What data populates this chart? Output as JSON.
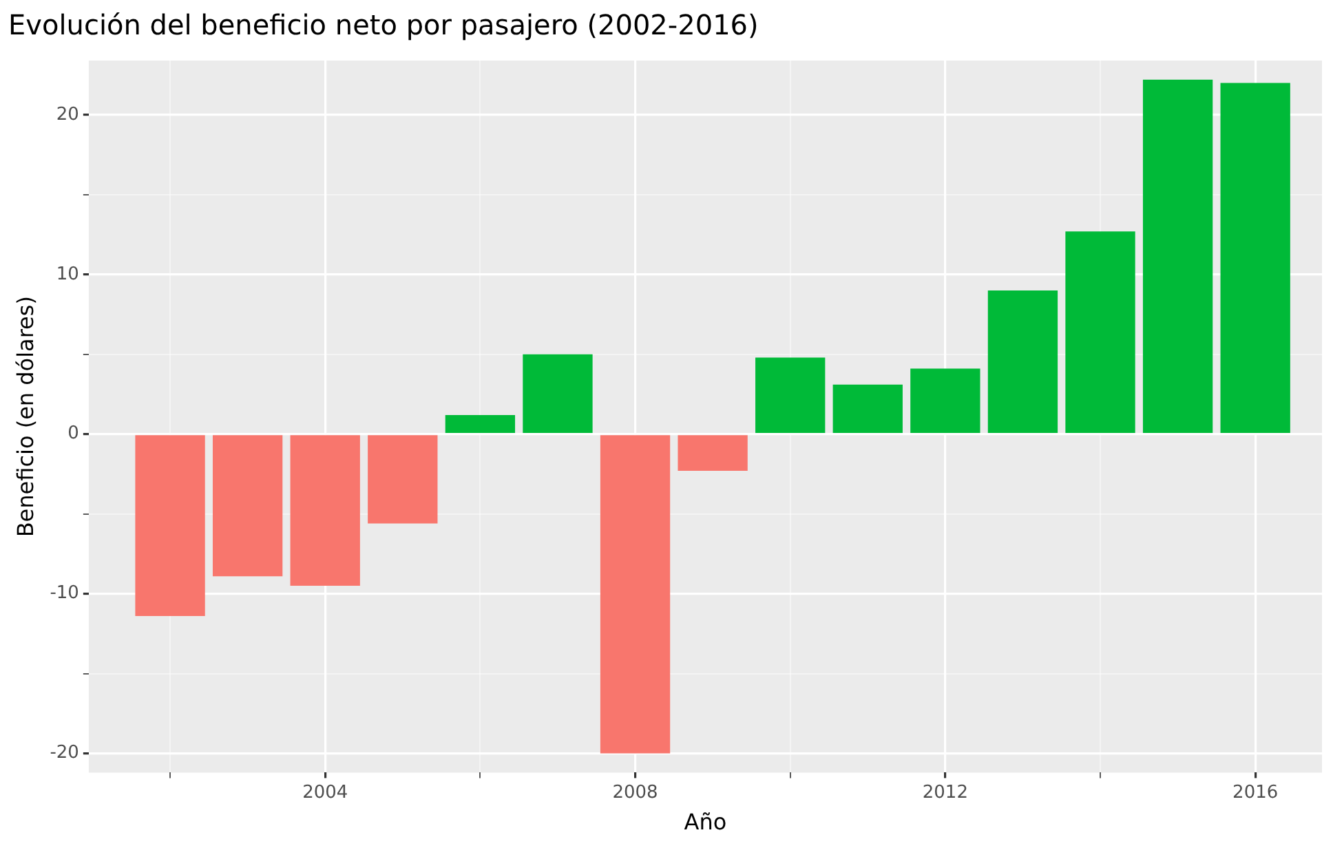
{
  "chart_data": {
    "type": "bar",
    "title": "Evolución del beneficio neto por pasajero (2002-2016)",
    "xlabel": "Año",
    "ylabel": "Beneficio (en dólares)",
    "x": [
      2002,
      2003,
      2004,
      2005,
      2006,
      2007,
      2008,
      2009,
      2010,
      2011,
      2012,
      2013,
      2014,
      2015,
      2016
    ],
    "values": [
      -11.4,
      -8.9,
      -9.5,
      -5.6,
      1.2,
      5.0,
      -20.0,
      -2.3,
      4.8,
      3.1,
      4.1,
      9.0,
      12.7,
      22.2,
      22.0
    ],
    "colors": [
      "#f8766d",
      "#f8766d",
      "#f8766d",
      "#f8766d",
      "#00ba38",
      "#00ba38",
      "#f8766d",
      "#f8766d",
      "#00ba38",
      "#00ba38",
      "#00ba38",
      "#00ba38",
      "#00ba38",
      "#00ba38",
      "#00ba38"
    ],
    "xlim": [
      2000.95,
      2016.86
    ],
    "xticks": [
      {
        "value": 2002,
        "label": null
      },
      2004,
      {
        "value": 2006,
        "label": null
      },
      2008,
      {
        "value": 2010,
        "label": null
      },
      2012,
      {
        "value": 2014,
        "label": null
      },
      2016
    ],
    "ylim": [
      -21.2,
      23.4
    ],
    "yticks": [
      -20,
      {
        "value": -15,
        "label": null
      },
      -10,
      {
        "value": -5,
        "label": null
      },
      0,
      {
        "value": 5,
        "label": null
      },
      10,
      {
        "value": 15,
        "label": null
      },
      20
    ],
    "grid": true,
    "legend": false
  }
}
